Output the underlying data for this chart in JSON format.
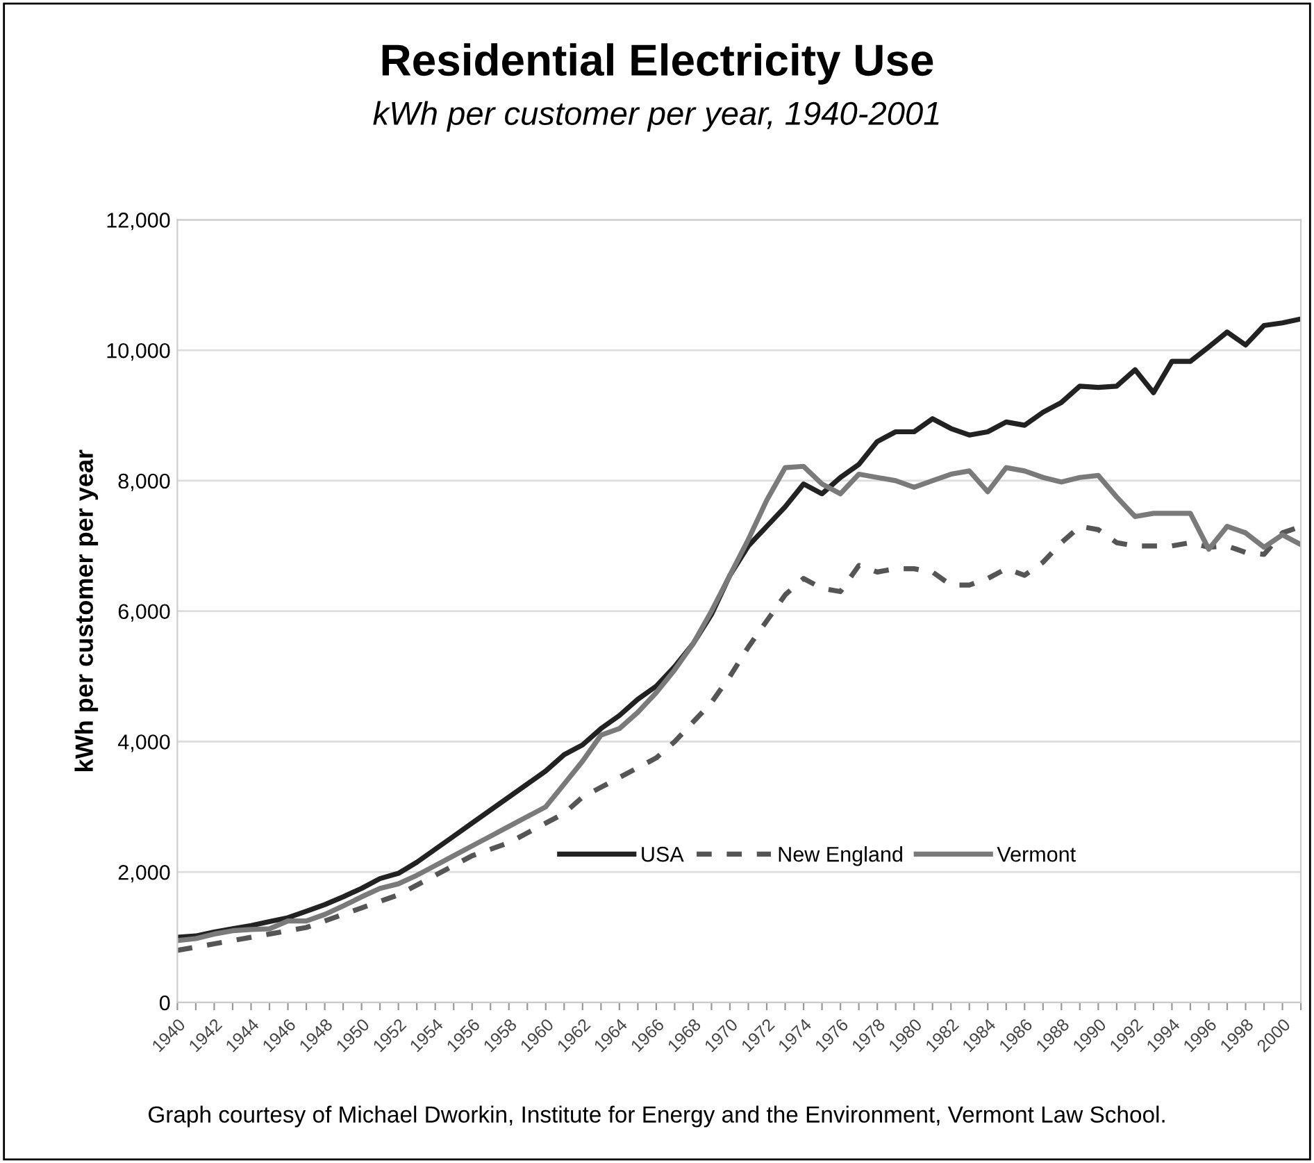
{
  "chart_data": {
    "type": "line",
    "title": "Residential Electricity Use",
    "subtitle": "kWh per customer per year, 1940-2001",
    "ylabel": "kWh per customer per year",
    "annotations": [
      "Graph courtesy of Michael Dworkin, Institute for Energy and the Environment, Vermont Law School."
    ],
    "categories": [
      "1940",
      null,
      "1942",
      null,
      "1944",
      null,
      "1946",
      null,
      "1948",
      null,
      "1950",
      null,
      "1952",
      null,
      "1954",
      null,
      "1956",
      null,
      "1958",
      null,
      "1960",
      null,
      "1962",
      null,
      "1964",
      null,
      "1966",
      null,
      "1968",
      null,
      "1970",
      null,
      "1972",
      null,
      "1974",
      null,
      "1976",
      null,
      "1978",
      null,
      "1980",
      null,
      "1982",
      null,
      "1984",
      null,
      "1986",
      null,
      "1988",
      null,
      "1990",
      null,
      "1992",
      null,
      "1994",
      null,
      "1996",
      null,
      "1998",
      null,
      "2000",
      null
    ],
    "series": [
      {
        "name": "USA",
        "color": "#222222",
        "line_style": "solid",
        "values": [
          1000,
          1020,
          1080,
          1130,
          1180,
          1240,
          1300,
          1400,
          1500,
          1620,
          1750,
          1900,
          1980,
          2150,
          2350,
          2550,
          2750,
          2950,
          3150,
          3350,
          3550,
          3800,
          3950,
          4200,
          4400,
          4650,
          4850,
          5150,
          5500,
          5950,
          6550,
          7000,
          7300,
          7600,
          7950,
          7800,
          8050,
          8250,
          8600,
          8750,
          8750,
          8950,
          8800,
          8700,
          8750,
          8900,
          8850,
          9050,
          9200,
          9450,
          9430,
          9450,
          9700,
          9350,
          9830,
          9830,
          10050,
          10280,
          10080,
          10380,
          10420,
          10480
        ]
      },
      {
        "name": "New England",
        "color": "#555555",
        "line_style": "dashed",
        "values": [
          800,
          850,
          900,
          950,
          1000,
          1050,
          1100,
          1150,
          1250,
          1350,
          1450,
          1550,
          1650,
          1800,
          1950,
          2100,
          2250,
          2350,
          2450,
          2600,
          2750,
          2900,
          3150,
          3300,
          3450,
          3600,
          3750,
          4000,
          4300,
          4600,
          5000,
          5450,
          5850,
          6250,
          6500,
          6350,
          6300,
          6700,
          6600,
          6650,
          6650,
          6600,
          6400,
          6400,
          6500,
          6650,
          6550,
          6750,
          7050,
          7300,
          7250,
          7050,
          7000,
          7000,
          7000,
          7050,
          6980,
          7000,
          6900,
          6870,
          7200,
          7300
        ]
      },
      {
        "name": "Vermont",
        "color": "#7a7a7a",
        "line_style": "solid",
        "values": [
          950,
          980,
          1050,
          1100,
          1120,
          1130,
          1250,
          1250,
          1350,
          1480,
          1620,
          1750,
          1820,
          1950,
          2100,
          2250,
          2400,
          2550,
          2700,
          2850,
          3000,
          3350,
          3700,
          4100,
          4200,
          4450,
          4750,
          5100,
          5500,
          6000,
          6550,
          7100,
          7700,
          8200,
          8220,
          7950,
          7800,
          8100,
          8050,
          8000,
          7900,
          8000,
          8100,
          8150,
          7830,
          8200,
          8150,
          8050,
          7980,
          8050,
          8080,
          7750,
          7450,
          7500,
          7500,
          7500,
          6950,
          7300,
          7200,
          6980,
          7170,
          7020
        ]
      }
    ],
    "ylim": [
      0,
      12000
    ],
    "yticks": [
      {
        "value": 0,
        "label": "0"
      },
      {
        "value": 2000,
        "label": "2,000"
      },
      {
        "value": 4000,
        "label": "4,000"
      },
      {
        "value": 6000,
        "label": "6,000"
      },
      {
        "value": 8000,
        "label": "8,000"
      },
      {
        "value": 10000,
        "label": "10,000"
      },
      {
        "value": 12000,
        "label": "12,000"
      }
    ],
    "grid": "y",
    "legend": "bottom",
    "marker": "none"
  }
}
